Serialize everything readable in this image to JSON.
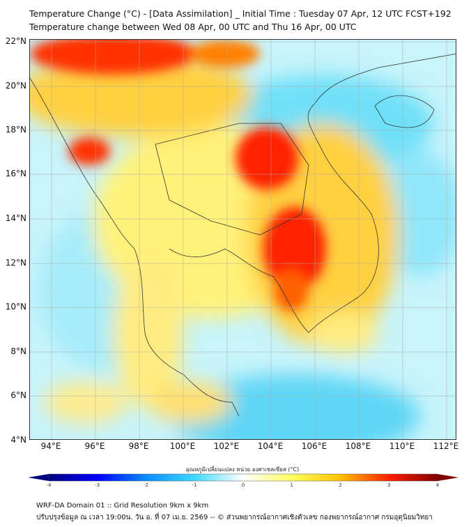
{
  "title_line1": "Temperature Change (°C) - [Data Assimilation] _ Initial Time : Tuesday 07 Apr, 12 UTC FCST+192",
  "title_line2": "Temperature change between Wed 08 Apr, 00 UTC and Thu 16 Apr, 00 UTC",
  "lat_labels": [
    "22°N",
    "20°N",
    "18°N",
    "16°N",
    "14°N",
    "12°N",
    "10°N",
    "8°N",
    "6°N",
    "4°N"
  ],
  "lon_labels": [
    "94°E",
    "96°E",
    "98°E",
    "100°E",
    "102°E",
    "104°E",
    "106°E",
    "108°E",
    "110°E",
    "112°E"
  ],
  "colorbar": {
    "label": "อุณหภูมิเปลี่ยนแปลง หน่วย องศาเซลเซียส (°C)",
    "ticks": [
      "-4",
      "-3",
      "-2",
      "-1",
      "0",
      "1",
      "2",
      "3",
      "4"
    ],
    "colors": [
      "#00007f",
      "#0000ff",
      "#0a8cff",
      "#3fd9ff",
      "#ffffff",
      "#ffff60",
      "#ffc000",
      "#ff2000",
      "#7f0000"
    ]
  },
  "footer_line1": "WRF-DA Domain 01 :: Grid Resolution 9km x 9km",
  "footer_line2": "ปรับปรุงข้อมูล ณ เวลา 19:00น. วัน อ. ที่ 07 เม.ย. 2569 -- © ส่วนพยากรณ์อากาศเชิงตัวเลข กองพยากรณ์อากาศ กรมอุตุนิยมวิทยา"
}
